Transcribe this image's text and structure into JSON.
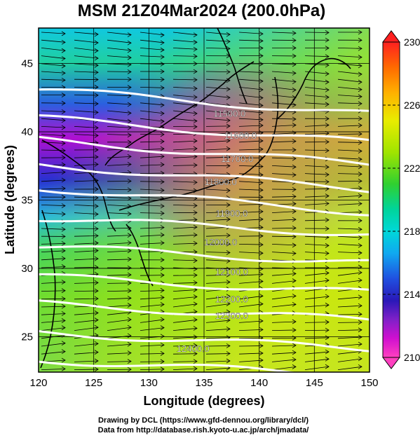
{
  "title": "MSM 21Z04Mar2024 (200.0hPa)",
  "axes": {
    "xlabel": "Longitude (degrees)",
    "ylabel": "Latitude  (degrees)",
    "x_ticks": [
      120,
      125,
      130,
      135,
      140,
      145,
      150
    ],
    "y_ticks": [
      25,
      30,
      35,
      40,
      45
    ],
    "xlim": [
      120,
      150
    ],
    "ylim": [
      22.4,
      47.6
    ]
  },
  "colorbar": {
    "labels": [
      "230",
      "226",
      "222",
      "218",
      "214",
      "210"
    ],
    "values": [
      230,
      226,
      222,
      218,
      214,
      210
    ],
    "range": [
      210,
      230
    ],
    "colors": [
      "#ff2020",
      "#ff6a00",
      "#ffb000",
      "#e8ec00",
      "#a0e400",
      "#30d030",
      "#00d49a",
      "#00d8d8",
      "#10a8f0",
      "#2050e0",
      "#2a18b8",
      "#8020c8",
      "#d010d0",
      "#ff40c0"
    ]
  },
  "contours": [
    {
      "label": "11500.0",
      "lon": 137.3,
      "lat": 41.1
    },
    {
      "label": "11600.0",
      "lon": 138.3,
      "lat": 39.5
    },
    {
      "label": "11700.0",
      "lon": 138.0,
      "lat": 37.8
    },
    {
      "label": "11800.0",
      "lon": 136.5,
      "lat": 36.1
    },
    {
      "label": "11900.0",
      "lon": 137.5,
      "lat": 33.8
    },
    {
      "label": "12000.0",
      "lon": 136.5,
      "lat": 31.7
    },
    {
      "label": "12100.0",
      "lon": 137.5,
      "lat": 29.5
    },
    {
      "label": "12200.0",
      "lon": 137.5,
      "lat": 27.5
    },
    {
      "label": "12300.0",
      "lon": 137.5,
      "lat": 26.3
    },
    {
      "label": "12400.0",
      "lon": 134.0,
      "lat": 23.9
    }
  ],
  "credits": {
    "line1": "Drawing by DCL (https://www.gfd-dennou.org/library/dcl/)",
    "line2": "Data from http://database.rish.kyoto-u.ac.jp/arch/jmadata/"
  }
}
